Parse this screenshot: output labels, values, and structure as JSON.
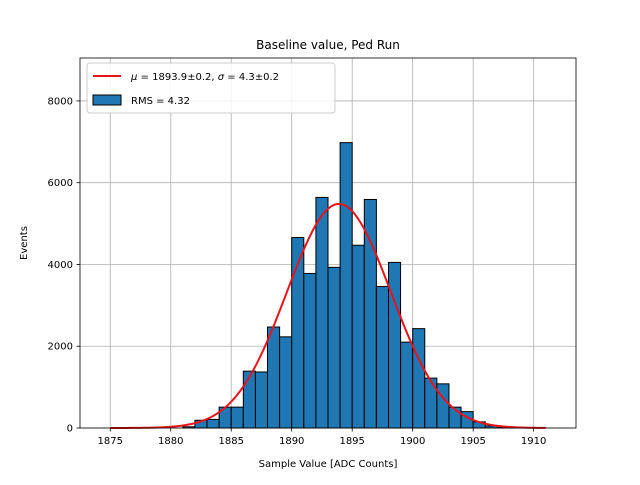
{
  "chart_data": {
    "type": "bar",
    "title": "Baseline value, Ped Run",
    "xlabel": "Sample Value [ADC Counts]",
    "ylabel": "Events",
    "xlim": [
      1872.5,
      1913.5
    ],
    "ylim": [
      0,
      9050
    ],
    "grid": true,
    "legend_position": "top-left",
    "xticks": [
      1875,
      1880,
      1885,
      1890,
      1895,
      1900,
      1905,
      1910
    ],
    "yticks": [
      0,
      2000,
      4000,
      6000,
      8000
    ],
    "bins": {
      "edges": [
        1875,
        1876,
        1877,
        1878,
        1879,
        1880,
        1881,
        1882,
        1883,
        1884,
        1885,
        1886,
        1887,
        1888,
        1889,
        1890,
        1891,
        1892,
        1893,
        1894,
        1895,
        1896,
        1897,
        1898,
        1899,
        1900,
        1901,
        1902,
        1903,
        1904,
        1905,
        1906,
        1907,
        1908,
        1909,
        1910,
        1911
      ],
      "counts": [
        0,
        0,
        0,
        0,
        0,
        0,
        30,
        190,
        210,
        510,
        510,
        1390,
        1370,
        2470,
        2230,
        4660,
        3780,
        5640,
        3930,
        6980,
        4470,
        5590,
        3460,
        4050,
        2100,
        2430,
        1220,
        1080,
        510,
        400,
        150,
        50,
        20,
        10,
        0,
        0
      ]
    },
    "fit": {
      "mu": 1893.9,
      "sigma": 4.3,
      "amplitude": 5480,
      "x_range": [
        1875,
        1911
      ]
    },
    "legend": [
      {
        "label": "$\\mu = 1893.9 \\pm 0.2$, $\\sigma = 4.3 \\pm 0.2$",
        "type": "line",
        "color": "#e8141b"
      },
      {
        "label": "RMS = 4.32",
        "type": "patch",
        "color": "#1f77b4"
      }
    ],
    "colors": {
      "bar": "#1f77b4",
      "bar_edge": "#000000",
      "fit": "#e8141b",
      "grid": "#b0b0b0"
    }
  },
  "legend_text": {
    "fit_mu_symbol": "μ",
    "fit_mu_rest": " = 1893.9±0.2, ",
    "fit_sigma_symbol": "σ",
    "fit_sigma_rest": " = 4.3±0.2",
    "rms": "RMS = 4.32"
  }
}
